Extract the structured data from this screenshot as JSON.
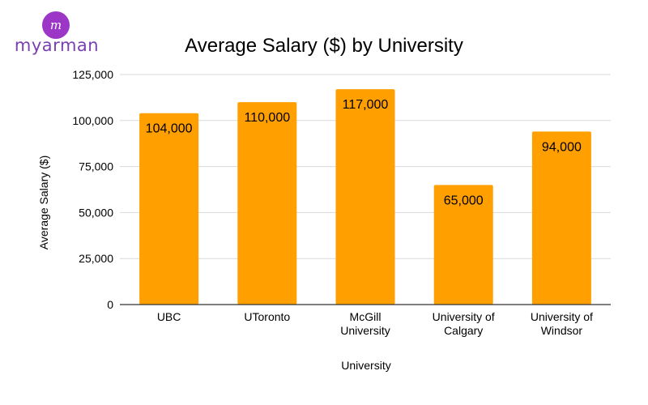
{
  "logo": {
    "mark": "m",
    "text": "myarman"
  },
  "chart_data": {
    "type": "bar",
    "title": "Average Salary ($) by University",
    "xlabel": "University",
    "ylabel": "Average Salary ($)",
    "categories": [
      [
        "UBC"
      ],
      [
        "UToronto"
      ],
      [
        "McGill",
        "University"
      ],
      [
        "University of",
        "Calgary"
      ],
      [
        "University of",
        "Windsor"
      ]
    ],
    "values": [
      104000,
      110000,
      117000,
      65000,
      94000
    ],
    "data_labels": [
      "104,000",
      "110,000",
      "117,000",
      "65,000",
      "94,000"
    ],
    "yticks": [
      "0",
      "25,000",
      "50,000",
      "75,000",
      "100,000",
      "125,000"
    ],
    "ylim": [
      0,
      125000
    ],
    "grid": true,
    "legend": "none",
    "bar_color": "#ff9f00",
    "grid_color": "#d9d9d9"
  }
}
